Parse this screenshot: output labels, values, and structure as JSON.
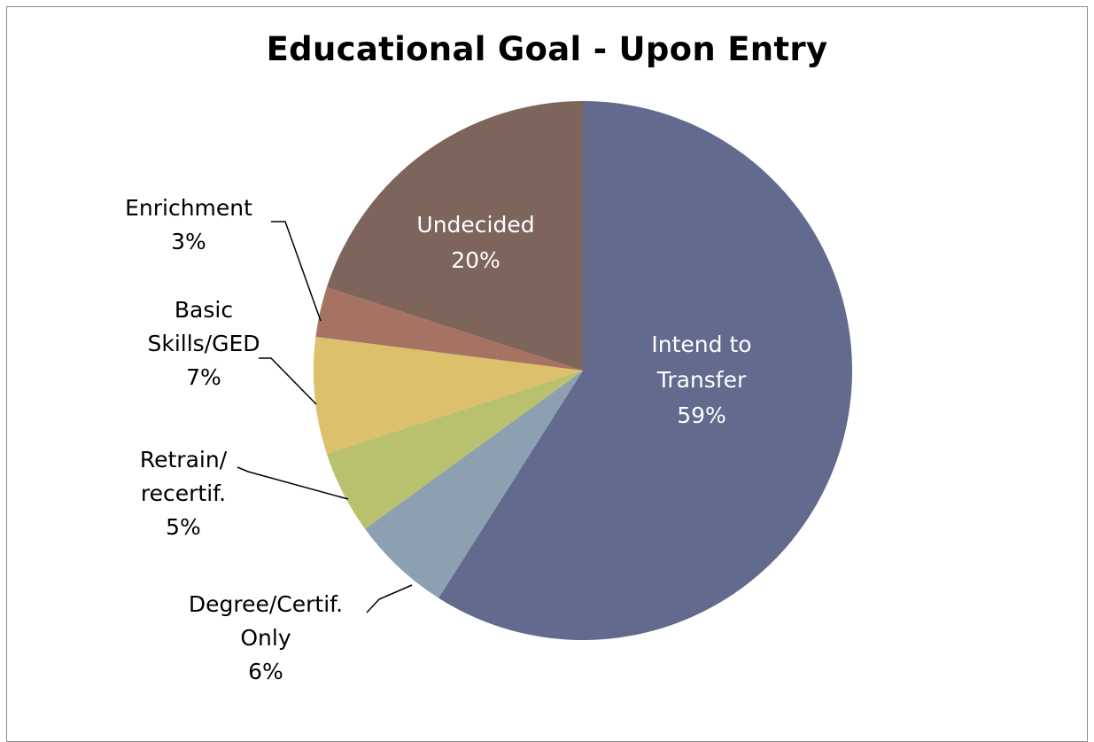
{
  "chart_data": {
    "type": "pie",
    "title": "Educational Goal - Upon Entry",
    "slices": [
      {
        "name": "Intend to Transfer",
        "lines": [
          "Intend to",
          "Transfer",
          "59%"
        ],
        "value": 59,
        "color": "#626a8e",
        "label_inside": true,
        "label_color": "#ffffff"
      },
      {
        "name": "Degree/Certif. Only",
        "lines": [
          "Degree/Certif.",
          "Only",
          "6%"
        ],
        "value": 6,
        "color": "#8da0b2",
        "label_inside": false,
        "label_color": "#000000"
      },
      {
        "name": "Retrain/ recertif.",
        "lines": [
          "Retrain/",
          "recertif.",
          "5%"
        ],
        "value": 5,
        "color": "#b9c06e",
        "label_inside": false,
        "label_color": "#000000"
      },
      {
        "name": "Basic Skills/GED",
        "lines": [
          "Basic",
          "Skills/GED",
          "7%"
        ],
        "value": 7,
        "color": "#dcc06b",
        "label_inside": false,
        "label_color": "#000000"
      },
      {
        "name": "Enrichment",
        "lines": [
          "Enrichment",
          "3%"
        ],
        "value": 3,
        "color": "#a67362",
        "label_inside": false,
        "label_color": "#000000"
      },
      {
        "name": "Undecided",
        "lines": [
          "Undecided",
          "20%"
        ],
        "value": 20,
        "color": "#7d655c",
        "label_inside": true,
        "label_color": "#ffffff"
      }
    ],
    "start_angle": "12 o'clock",
    "direction": "clockwise"
  }
}
